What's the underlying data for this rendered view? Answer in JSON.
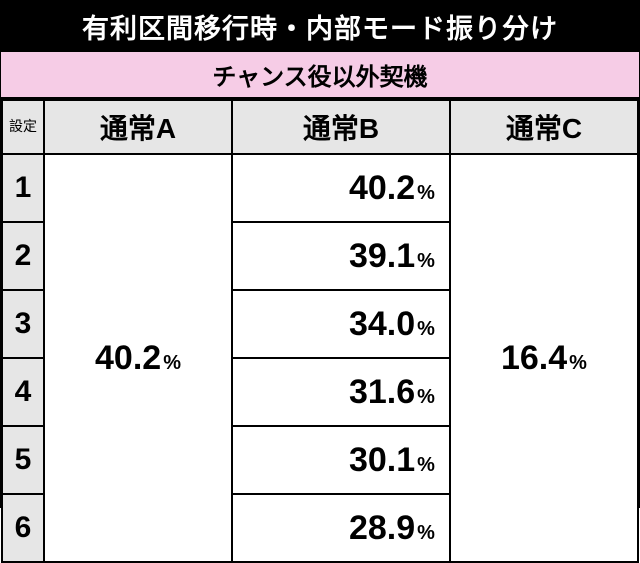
{
  "title": "有利区間移行時・内部モード振り分け",
  "subtitle": "チャンス役以外契機",
  "columns": {
    "setting": "設定",
    "a": "通常A",
    "b": "通常B",
    "c": "通常C"
  },
  "settings": [
    "1",
    "2",
    "3",
    "4",
    "5",
    "6"
  ],
  "mode_a_merged": {
    "value": "40.2",
    "unit": "%"
  },
  "mode_b": [
    {
      "value": "40.2",
      "unit": "%"
    },
    {
      "value": "39.1",
      "unit": "%"
    },
    {
      "value": "34.0",
      "unit": "%"
    },
    {
      "value": "31.6",
      "unit": "%"
    },
    {
      "value": "30.1",
      "unit": "%"
    },
    {
      "value": "28.9",
      "unit": "%"
    }
  ],
  "mode_c_merged": {
    "value": "16.4",
    "unit": "%"
  },
  "colors": {
    "title_bg": "#000000",
    "title_fg": "#ffffff",
    "subtitle_bg": "#f6cce6",
    "header_bg": "#e6e6e6",
    "cell_bg": "#ffffff",
    "border": "#000000"
  },
  "type": "table"
}
